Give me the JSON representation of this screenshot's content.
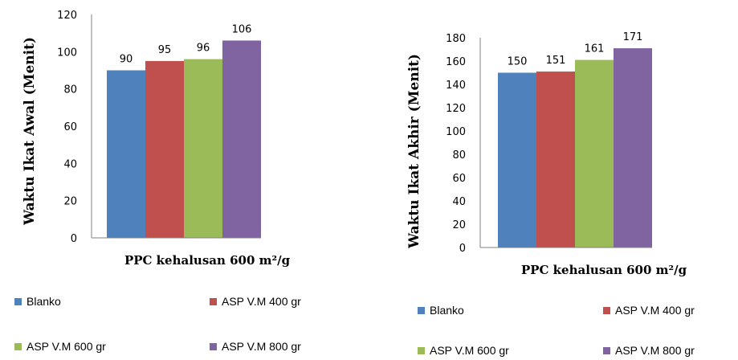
{
  "colors": {
    "series": [
      "#4f81bd",
      "#c0504d",
      "#9bbb59",
      "#8064a2"
    ],
    "axis": "#808080"
  },
  "chart_data": [
    {
      "type": "bar",
      "categories": [
        "PPC kehalusan 600 m²/g"
      ],
      "xlabel": "PPC kehalusan 600 m²/g",
      "ylabel": "Waktu Ikat Awal (Menit)",
      "ylim": [
        0,
        120
      ],
      "yticks": [
        0,
        20,
        40,
        60,
        80,
        100,
        120
      ],
      "grid": false,
      "legend_position": "bottom",
      "series": [
        {
          "name": "Blanko",
          "values": [
            90
          ]
        },
        {
          "name": "ASP V.M 400 gr",
          "values": [
            95
          ]
        },
        {
          "name": "ASP V.M 600 gr",
          "values": [
            96
          ]
        },
        {
          "name": "ASP V.M 800 gr",
          "values": [
            106
          ]
        }
      ]
    },
    {
      "type": "bar",
      "categories": [
        "PPC kehalusan 600 m²/g"
      ],
      "xlabel": "PPC kehalusan 600 m²/g",
      "ylabel": "Waktu Ikat Akhir (Menit)",
      "ylim": [
        0,
        180
      ],
      "yticks": [
        0,
        20,
        40,
        60,
        80,
        100,
        120,
        140,
        160,
        180
      ],
      "grid": false,
      "legend_position": "bottom",
      "series": [
        {
          "name": "Blanko",
          "values": [
            150
          ]
        },
        {
          "name": "ASP V.M 400 gr",
          "values": [
            151
          ]
        },
        {
          "name": "ASP V.M 600 gr",
          "values": [
            161
          ]
        },
        {
          "name": "ASP V.M 800 gr",
          "values": [
            171
          ]
        }
      ]
    }
  ]
}
